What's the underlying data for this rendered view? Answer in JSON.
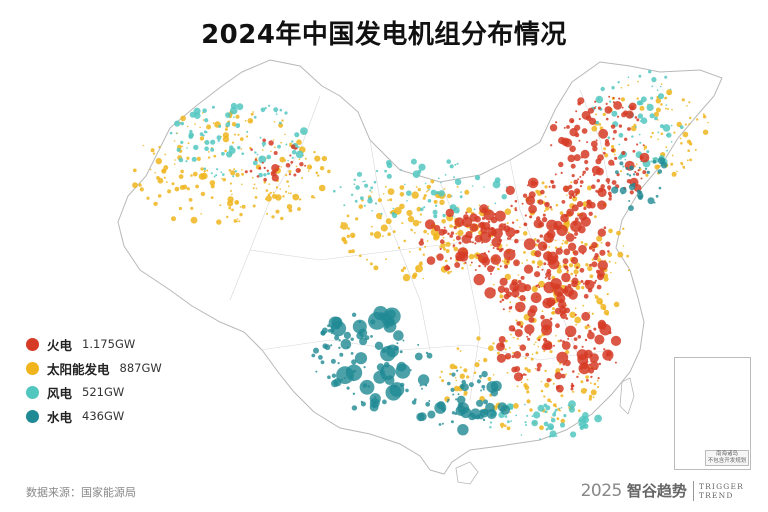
{
  "title": "2024年中国发电机组分布情况",
  "legend": [
    {
      "label": "火电",
      "value": "1.175GW",
      "color": "#d63b26"
    },
    {
      "label": "太阳能发电",
      "value": "887GW",
      "color": "#f0b51d"
    },
    {
      "label": "风电",
      "value": "521GW",
      "color": "#52c7bf"
    },
    {
      "label": "水电",
      "value": "436GW",
      "color": "#1f8a94"
    }
  ],
  "source": "数据来源：国家能源局",
  "brand": {
    "year": "2025",
    "name": "智谷趋势",
    "en_line1": "TRIGGER",
    "en_line2": "TREND"
  },
  "inset": {
    "label_line1": "南海诸岛",
    "label_line2": "不包含开发规划"
  },
  "colors": {
    "coal": "#d63b26",
    "solar": "#f0b51d",
    "wind": "#52c7bf",
    "hydro": "#1f8a94",
    "outline": "#b8b8b8"
  }
}
